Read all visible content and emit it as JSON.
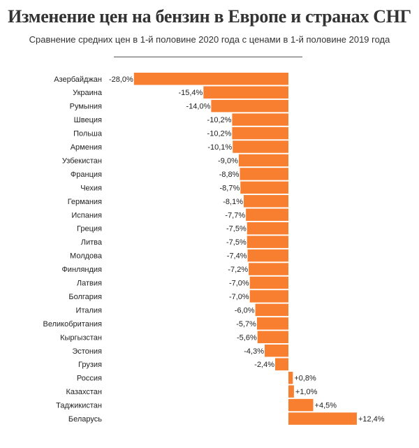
{
  "chart_data": {
    "type": "bar",
    "orientation": "horizontal",
    "title": "Изменение цен на бензин в Европе и странах СНГ",
    "subtitle": "Сравнение средних цен в 1-й половине 2020 года с ценами в 1-й половине 2019 года",
    "xlabel": "",
    "ylabel": "",
    "unit": "%",
    "categories": [
      "Азербайджан",
      "Украина",
      "Румыния",
      "Швеция",
      "Польша",
      "Армения",
      "Узбекистан",
      "Франция",
      "Чехия",
      "Германия",
      "Испания",
      "Греция",
      "Литва",
      "Молдова",
      "Финляндия",
      "Латвия",
      "Болгария",
      "Италия",
      "Великобритания",
      "Кыргызстан",
      "Эстония",
      "Грузия",
      "Россия",
      "Казахстан",
      "Таджикистан",
      "Беларусь"
    ],
    "values": [
      -28.0,
      -15.4,
      -14.0,
      -10.2,
      -10.2,
      -10.1,
      -9.0,
      -8.8,
      -8.7,
      -8.1,
      -7.7,
      -7.5,
      -7.5,
      -7.4,
      -7.2,
      -7.0,
      -7.0,
      -6.0,
      -5.7,
      -5.6,
      -4.3,
      -2.4,
      0.8,
      1.0,
      4.5,
      12.4
    ],
    "data_labels": [
      "-28,0%",
      "-15,4%",
      "-14,0%",
      "-10,2%",
      "-10,2%",
      "-10,1%",
      "-9,0%",
      "-8,8%",
      "-8,7%",
      "-8,1%",
      "-7,7%",
      "-7,5%",
      "-7,5%",
      "-7,4%",
      "-7,2%",
      "-7,0%",
      "-7,0%",
      "-6,0%",
      "-5,7%",
      "-5,6%",
      "-4,3%",
      "-2,4%",
      "+0,8%",
      "+1,0%",
      "+4,5%",
      "+12,4%"
    ],
    "xlim": [
      -28,
      16
    ],
    "grid": false,
    "legend": "none",
    "bar_color": "#f77f2f"
  }
}
